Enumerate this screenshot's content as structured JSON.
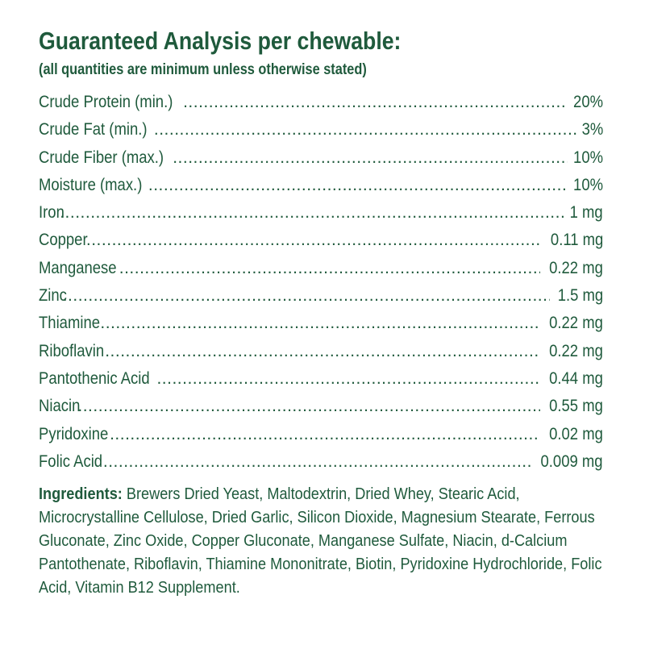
{
  "colors": {
    "text": "#1f5a3c",
    "background": "#ffffff"
  },
  "header": {
    "title": "Guaranteed Analysis per chewable:",
    "subtitle": "(all quantities are minimum unless otherwise stated)"
  },
  "analysis": [
    {
      "label": "Crude Protein (min.)",
      "value": "20%"
    },
    {
      "label": "Crude Fat (min.)",
      "value": "3%"
    },
    {
      "label": "Crude Fiber (max.)",
      "value": "10%"
    },
    {
      "label": "Moisture (max.)",
      "value": "10%"
    },
    {
      "label": "Iron",
      "value": "1 mg"
    },
    {
      "label": "Copper",
      "value": "0.11 mg"
    },
    {
      "label": "Manganese",
      "value": "0.22 mg"
    },
    {
      "label": "Zinc",
      "value": "1.5 mg"
    },
    {
      "label": "Thiamine",
      "value": "0.22 mg"
    },
    {
      "label": "Riboflavin",
      "value": "0.22 mg"
    },
    {
      "label": "Pantothenic Acid",
      "value": "0.44 mg"
    },
    {
      "label": "Niacin",
      "value": "0.55 mg"
    },
    {
      "label": "Pyridoxine",
      "value": "0.02 mg"
    },
    {
      "label": "Folic Acid",
      "value": "0.009 mg"
    }
  ],
  "ingredients": {
    "label": "Ingredients:",
    "text": "Brewers Dried Yeast, Maltodextrin, Dried Whey, Stearic Acid, Microcrystalline Cellulose, Dried Garlic, Silicon Dioxide, Magnesium Stearate, Ferrous Gluconate, Zinc Oxide, Copper Gluconate, Manganese Sulfate, Niacin, d-Calcium Pantothenate, Riboflavin, Thiamine Mononitrate, Biotin, Pyridoxine Hydrochloride, Folic Acid, Vitamin B12 Supplement."
  }
}
